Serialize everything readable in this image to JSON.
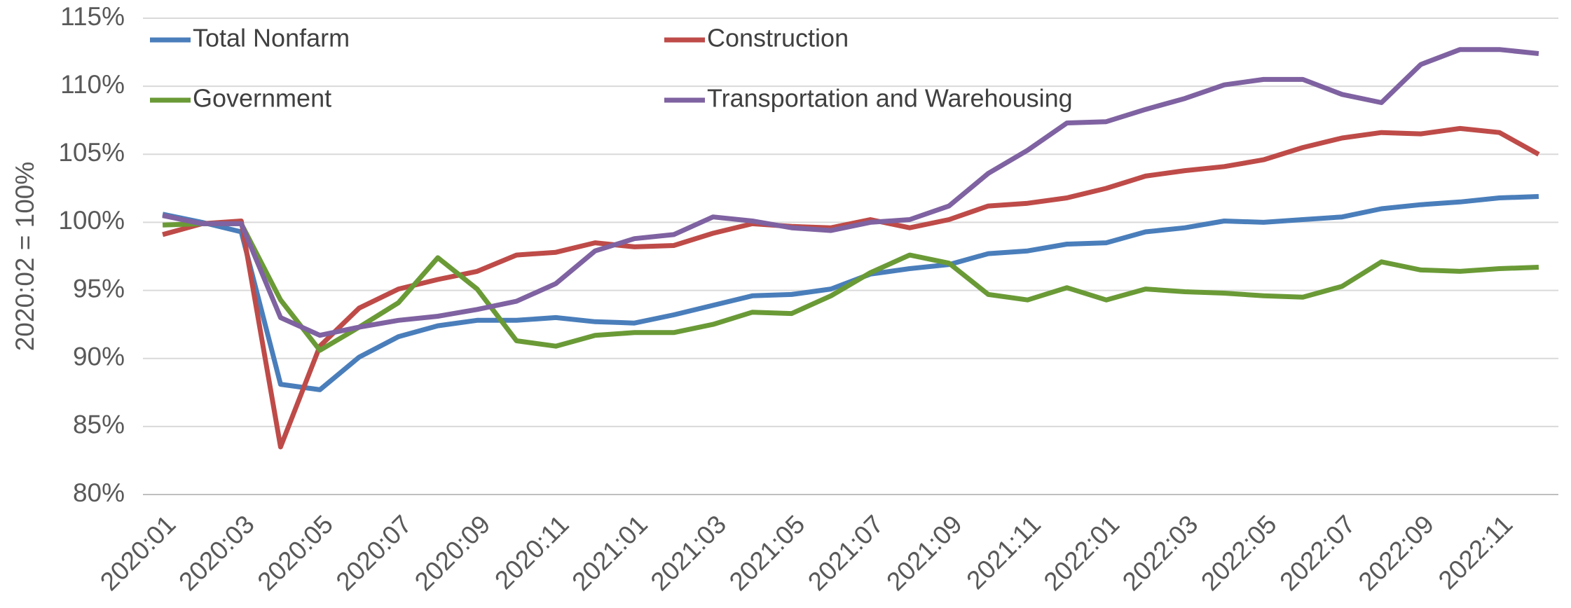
{
  "chart_data": {
    "type": "line",
    "ylabel": "2020:02 = 100%",
    "categories": [
      "2020:01",
      null,
      "2020:03",
      null,
      "2020:05",
      null,
      "2020:07",
      null,
      "2020:09",
      null,
      "2020:11",
      null,
      "2021:01",
      null,
      "2021:03",
      null,
      "2021:05",
      null,
      "2021:07",
      null,
      "2021:09",
      null,
      "2021:11",
      null,
      "2022:01",
      null,
      "2022:03",
      null,
      "2022:05",
      null,
      "2022:07",
      null,
      "2022:09",
      null,
      "2022:11",
      null
    ],
    "series": [
      {
        "name": "Total Nonfarm",
        "color": "#4a7ebb",
        "values": [
          100.6,
          100.0,
          99.3,
          88.1,
          87.7,
          90.1,
          91.6,
          92.4,
          92.8,
          92.8,
          93.0,
          92.7,
          92.6,
          93.2,
          93.9,
          94.6,
          94.7,
          95.1,
          96.2,
          96.6,
          96.9,
          97.7,
          97.9,
          98.4,
          98.5,
          99.3,
          99.6,
          100.1,
          100.0,
          100.2,
          100.4,
          101.0,
          101.3,
          101.5,
          101.8,
          101.9
        ]
      },
      {
        "name": "Construction",
        "color": "#be4b48",
        "values": [
          99.1,
          99.9,
          100.1,
          83.5,
          90.9,
          93.7,
          95.1,
          95.8,
          96.4,
          97.6,
          97.8,
          98.5,
          98.2,
          98.3,
          99.2,
          99.9,
          99.7,
          99.6,
          100.2,
          99.6,
          100.2,
          101.2,
          101.4,
          101.8,
          102.5,
          103.4,
          103.8,
          104.1,
          104.6,
          105.5,
          106.2,
          106.6,
          106.5,
          106.9,
          106.6,
          105.0
        ]
      },
      {
        "name": "Government",
        "color": "#6a9a36",
        "values": [
          99.8,
          99.9,
          99.9,
          94.3,
          90.6,
          92.3,
          94.1,
          97.4,
          95.1,
          91.3,
          90.9,
          91.7,
          91.9,
          91.9,
          92.5,
          93.4,
          93.3,
          94.6,
          96.3,
          97.6,
          97.0,
          94.7,
          94.3,
          95.2,
          94.3,
          95.1,
          94.9,
          94.8,
          94.6,
          94.5,
          95.3,
          97.1,
          96.5,
          96.4,
          96.6,
          96.7
        ]
      },
      {
        "name": "Transportation and Warehousing",
        "color": "#7f62a1",
        "values": [
          100.5,
          99.9,
          99.9,
          93.0,
          91.7,
          92.3,
          92.8,
          93.1,
          93.6,
          94.2,
          95.5,
          97.9,
          98.8,
          99.1,
          100.4,
          100.1,
          99.6,
          99.4,
          100.0,
          100.2,
          101.2,
          103.6,
          105.3,
          107.3,
          107.4,
          108.3,
          109.1,
          110.1,
          110.5,
          110.5,
          109.4,
          108.8,
          111.6,
          112.7,
          112.7,
          112.4
        ]
      }
    ],
    "ylim": [
      80,
      115
    ],
    "yticks": [
      {
        "value": 80,
        "label": "80%"
      },
      {
        "value": 85,
        "label": "85%"
      },
      {
        "value": 90,
        "label": "90%"
      },
      {
        "value": 95,
        "label": "95%"
      },
      {
        "value": 100,
        "label": "100%"
      },
      {
        "value": 105,
        "label": "105%"
      },
      {
        "value": 110,
        "label": "110%"
      },
      {
        "value": 115,
        "label": "115%"
      }
    ],
    "grid": true,
    "legend": "top"
  }
}
